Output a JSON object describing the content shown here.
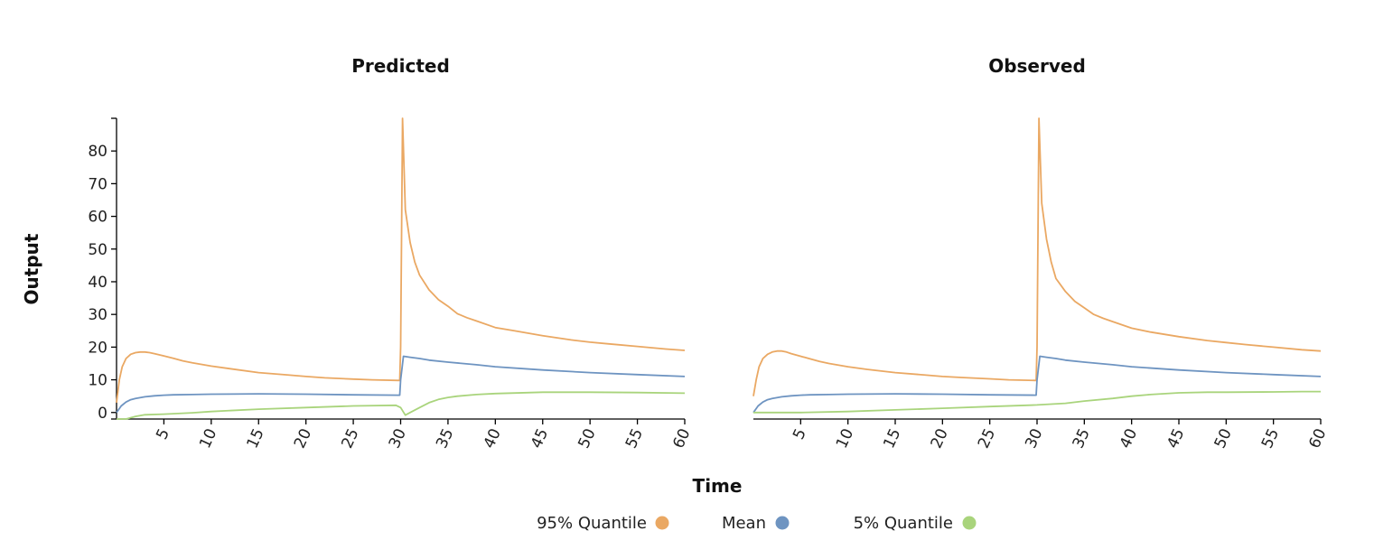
{
  "chart_data": {
    "type": "line",
    "xlabel": "Time",
    "ylabel": "Output",
    "xlim": [
      0,
      60
    ],
    "ylim": [
      -2,
      90
    ],
    "x_ticks": [
      5,
      10,
      15,
      20,
      25,
      30,
      35,
      40,
      45,
      50,
      55,
      60
    ],
    "y_ticks": [
      0,
      10,
      20,
      30,
      40,
      50,
      60,
      70,
      80
    ],
    "legend_position": "bottom-center",
    "legend": [
      {
        "name": "95% Quantile",
        "color": "#eaa863"
      },
      {
        "name": "Mean",
        "color": "#6e94c1"
      },
      {
        "name": "5% Quantile",
        "color": "#a9d47c"
      }
    ],
    "panels": [
      {
        "title": "Predicted",
        "series": [
          {
            "name": "95% Quantile",
            "color": "#eaa863",
            "x": [
              0,
              0.3,
              0.6,
              1,
              1.5,
              2,
              2.5,
              3,
              3.5,
              4,
              5,
              6,
              7,
              8,
              10,
              12,
              15,
              18,
              20,
              22,
              25,
              27,
              29.9,
              30,
              30.2,
              30.5,
              31,
              31.5,
              32,
              33,
              34,
              35,
              36,
              37,
              38,
              40,
              42,
              45,
              48,
              50,
              52,
              55,
              58,
              60
            ],
            "y": [
              3,
              10,
              14,
              16.5,
              17.8,
              18.3,
              18.5,
              18.5,
              18.3,
              18,
              17.3,
              16.6,
              15.8,
              15.2,
              14.2,
              13.4,
              12.2,
              11.5,
              11,
              10.6,
              10.2,
              10,
              9.8,
              20,
              90,
              62,
              52,
              46,
              42,
              37.5,
              34.5,
              32.5,
              30.2,
              29,
              28,
              26,
              25,
              23.5,
              22.2,
              21.5,
              21,
              20.2,
              19.4,
              19
            ]
          },
          {
            "name": "Mean",
            "color": "#6e94c1",
            "x": [
              0,
              0.5,
              1,
              1.5,
              2,
              3,
              4,
              5,
              6,
              8,
              10,
              15,
              20,
              25,
              29.9,
              30,
              30.3,
              31,
              32,
              33,
              35,
              38,
              40,
              45,
              50,
              55,
              60
            ],
            "y": [
              0,
              2,
              3.2,
              3.9,
              4.3,
              4.8,
              5.1,
              5.3,
              5.4,
              5.5,
              5.6,
              5.7,
              5.6,
              5.4,
              5.3,
              10,
              17.2,
              16.9,
              16.5,
              16,
              15.4,
              14.6,
              14,
              13,
              12.2,
              11.6,
              11
            ]
          },
          {
            "name": "5% Quantile",
            "color": "#a9d47c",
            "x": [
              0,
              1,
              2,
              3,
              5,
              8,
              10,
              15,
              20,
              25,
              29.5,
              30,
              30.5,
              31,
              32,
              33,
              34,
              35,
              36,
              38,
              40,
              45,
              50,
              55,
              60
            ],
            "y": [
              -2,
              -2,
              -1.2,
              -0.7,
              -0.5,
              -0.1,
              0.3,
              1,
              1.5,
              2,
              2.2,
              1.5,
              -0.8,
              0,
              1.5,
              3,
              4,
              4.6,
              5,
              5.5,
              5.8,
              6.2,
              6.2,
              6.1,
              5.9
            ]
          }
        ]
      },
      {
        "title": "Observed",
        "series": [
          {
            "name": "95% Quantile",
            "color": "#eaa863",
            "x": [
              0,
              0.3,
              0.6,
              1,
              1.5,
              2,
              2.5,
              3,
              3.5,
              4,
              5,
              6,
              7,
              8,
              10,
              12,
              15,
              18,
              20,
              22,
              25,
              27,
              29.9,
              30,
              30.2,
              30.5,
              31,
              31.5,
              32,
              33,
              34,
              35,
              36,
              37,
              38,
              40,
              42,
              45,
              48,
              50,
              52,
              55,
              58,
              60
            ],
            "y": [
              5,
              10,
              14,
              16.5,
              17.8,
              18.5,
              18.8,
              18.8,
              18.5,
              18,
              17.2,
              16.4,
              15.6,
              15,
              14,
              13.2,
              12.2,
              11.5,
              11,
              10.7,
              10.3,
              10,
              9.8,
              20,
              90,
              64,
              53,
              46,
              41,
              37,
              34,
              32,
              30,
              28.8,
              27.8,
              25.8,
              24.6,
              23.2,
              22,
              21.4,
              20.8,
              20,
              19.2,
              18.8
            ]
          },
          {
            "name": "Mean",
            "color": "#6e94c1",
            "x": [
              0,
              0.5,
              1,
              1.5,
              2,
              3,
              4,
              5,
              6,
              8,
              10,
              15,
              20,
              25,
              29.9,
              30,
              30.3,
              31,
              32,
              33,
              35,
              38,
              40,
              45,
              50,
              55,
              60
            ],
            "y": [
              0,
              2,
              3.2,
              3.9,
              4.3,
              4.8,
              5.1,
              5.3,
              5.4,
              5.5,
              5.6,
              5.7,
              5.6,
              5.4,
              5.3,
              10,
              17.2,
              16.9,
              16.5,
              16,
              15.4,
              14.6,
              14,
              13,
              12.2,
              11.6,
              11
            ]
          },
          {
            "name": "5% Quantile",
            "color": "#a9d47c",
            "x": [
              0,
              5,
              10,
              15,
              20,
              25,
              30,
              33,
              35,
              38,
              40,
              42,
              45,
              48,
              50,
              55,
              58,
              60
            ],
            "y": [
              0,
              0,
              0.3,
              0.8,
              1.3,
              1.8,
              2.3,
              2.8,
              3.5,
              4.3,
              5,
              5.5,
              6,
              6.2,
              6.2,
              6.3,
              6.4,
              6.4
            ]
          }
        ]
      }
    ]
  }
}
